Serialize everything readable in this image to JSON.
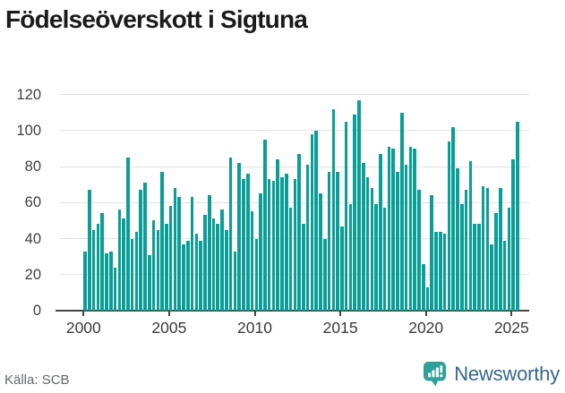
{
  "title": "Födelseöverskott i Sigtuna",
  "footer": {
    "source": "Källa: SCB",
    "brand": "Newsworthy"
  },
  "colors": {
    "bar": "#0a9e96",
    "grid": "#e3e3e3",
    "axis": "#454545",
    "axis_label": "#3a3a3a",
    "title": "#1b1b1b",
    "source_text": "#63666b",
    "brand_text": "#33688c",
    "brand_icon": "#2da197"
  },
  "chart_data": {
    "type": "bar",
    "title": "Födelseöverskott i Sigtuna",
    "xlabel": "",
    "ylabel": "",
    "ylim": [
      0,
      120
    ],
    "grid": "horizontal",
    "legend": "none",
    "frequency": "quarterly",
    "start_period": "2000-Q1",
    "end_period": "2025-Q2",
    "x_tick_labels": [
      "2000",
      "2005",
      "2010",
      "2015",
      "2020",
      "2025"
    ],
    "y_tick_values": [
      0,
      20,
      40,
      60,
      80,
      100,
      120
    ],
    "values": [
      33,
      67,
      45,
      48,
      54,
      32,
      33,
      24,
      56,
      51,
      85,
      40,
      44,
      67,
      71,
      31,
      50,
      45,
      77,
      48,
      58,
      68,
      63,
      37,
      39,
      63,
      43,
      39,
      53,
      64,
      51,
      48,
      56,
      45,
      85,
      33,
      82,
      73,
      76,
      55,
      40,
      65,
      95,
      73,
      72,
      84,
      74,
      76,
      57,
      73,
      87,
      48,
      81,
      98,
      100,
      65,
      40,
      77,
      112,
      77,
      47,
      105,
      59,
      109,
      117,
      82,
      74,
      68,
      59,
      87,
      57,
      91,
      90,
      77,
      110,
      81,
      91,
      90,
      67,
      26,
      13,
      64,
      44,
      44,
      43,
      94,
      102,
      79,
      59,
      67,
      83,
      48,
      48,
      69,
      68,
      37,
      54,
      68,
      39,
      57,
      84,
      105
    ]
  }
}
